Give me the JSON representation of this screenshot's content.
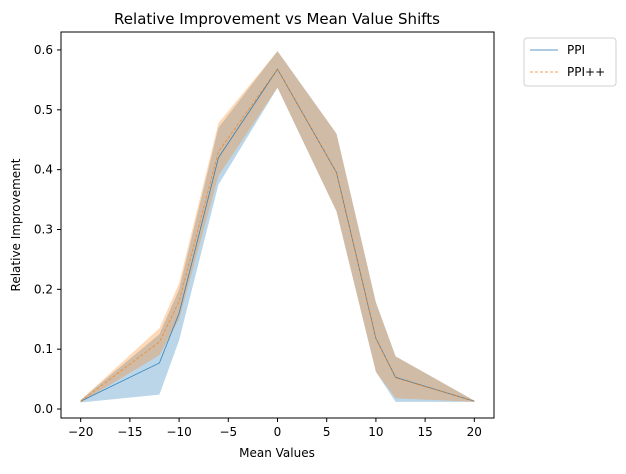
{
  "chart_data": {
    "type": "line",
    "title": "Relative Improvement vs Mean Value Shifts",
    "xlabel": "Mean Values",
    "ylabel": "Relative Improvement",
    "xlim": [
      -22,
      22
    ],
    "ylim": [
      -0.015,
      0.63
    ],
    "xticks": [
      -20,
      -15,
      -10,
      -5,
      0,
      5,
      10,
      15,
      20
    ],
    "yticks": [
      0.0,
      0.1,
      0.2,
      0.3,
      0.4,
      0.5,
      0.6
    ],
    "grid": false,
    "legend_position": "outside-top-right",
    "x": [
      -20,
      -12,
      -10,
      -6,
      0,
      6,
      10,
      12,
      20
    ],
    "series": [
      {
        "name": "PPI",
        "color": "#1f77b4",
        "line_style": "solid",
        "values": [
          0.013,
          0.077,
          0.16,
          0.42,
          0.568,
          0.395,
          0.118,
          0.053,
          0.013
        ],
        "lower": [
          0.011,
          0.024,
          0.115,
          0.375,
          0.537,
          0.33,
          0.062,
          0.012,
          0.012
        ],
        "upper": [
          0.015,
          0.125,
          0.2,
          0.47,
          0.598,
          0.46,
          0.178,
          0.088,
          0.014
        ]
      },
      {
        "name": "PPI++",
        "color": "#ff7f0e",
        "line_style": "dashed",
        "values": [
          0.013,
          0.112,
          0.18,
          0.43,
          0.568,
          0.395,
          0.118,
          0.052,
          0.013
        ],
        "lower": [
          0.011,
          0.09,
          0.15,
          0.39,
          0.537,
          0.33,
          0.062,
          0.018,
          0.012
        ],
        "upper": [
          0.015,
          0.135,
          0.21,
          0.478,
          0.598,
          0.46,
          0.178,
          0.088,
          0.014
        ]
      }
    ]
  }
}
